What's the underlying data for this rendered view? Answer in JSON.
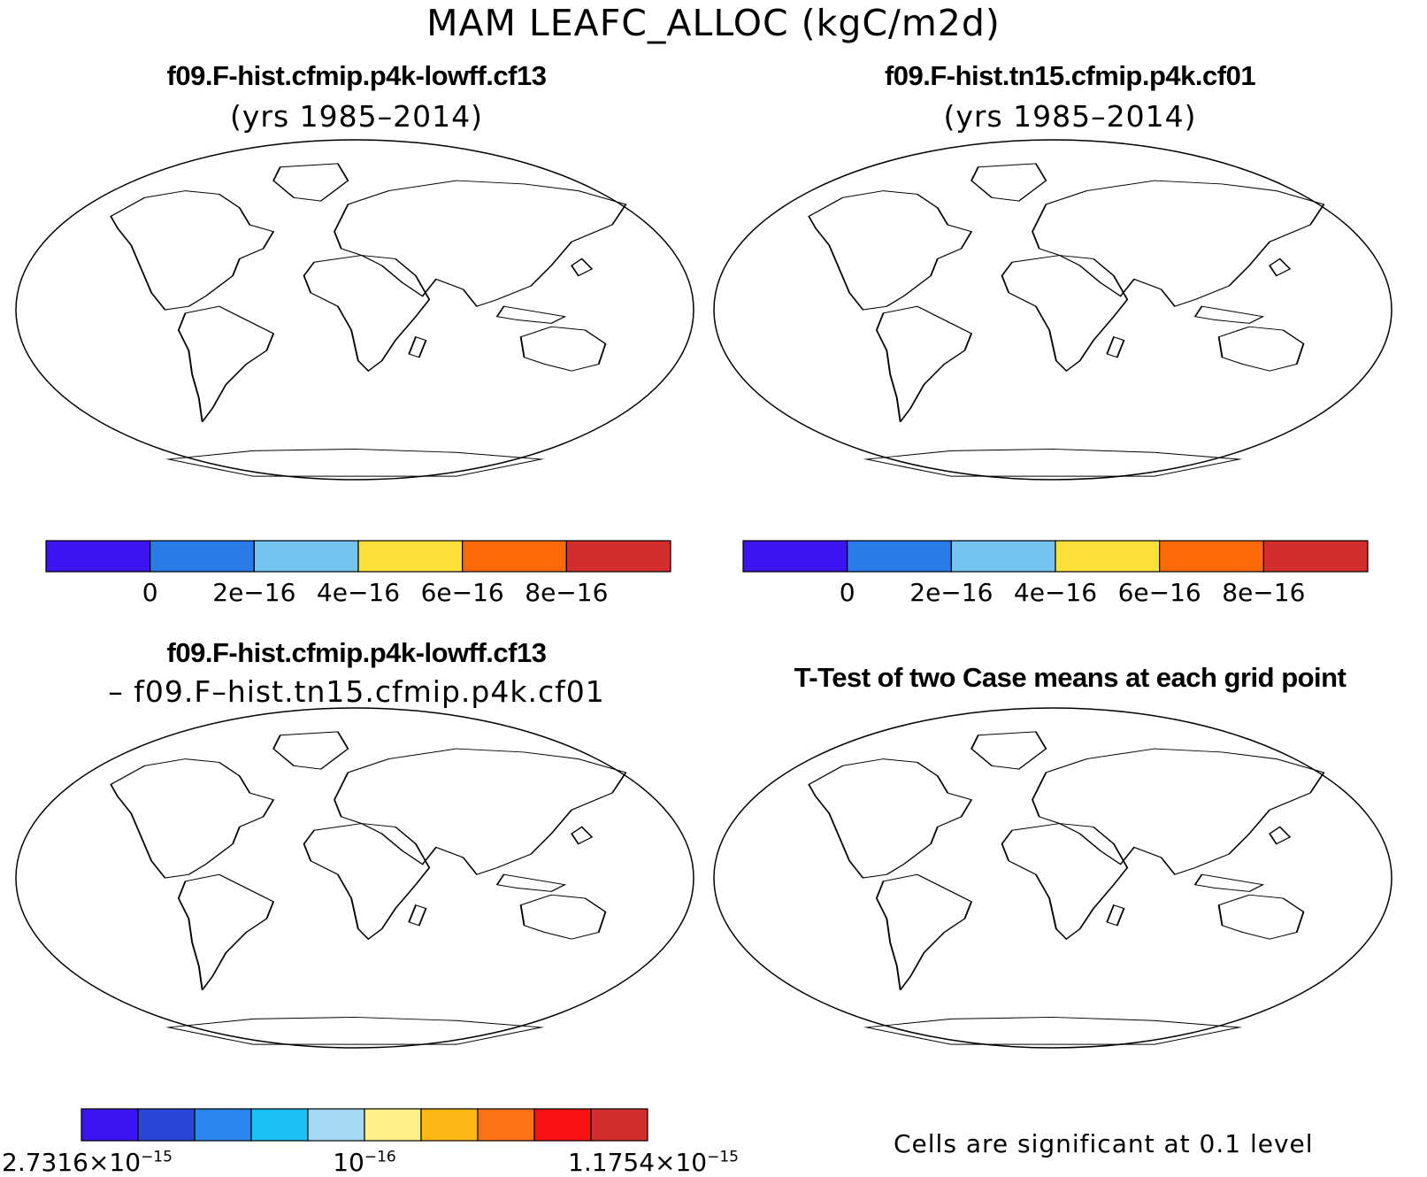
{
  "title": "MAM LEAFC_ALLOC (kgC/m2d)",
  "panels": {
    "case1": {
      "title": "f09.F-hist.cfmip.p4k-lowff.cf13",
      "subtitle": "(yrs 1985–2014)"
    },
    "case2": {
      "title": "f09.F-hist.tn15.cfmip.p4k.cf01",
      "subtitle": "(yrs 1985–2014)"
    },
    "diff": {
      "title": "f09.F-hist.cfmip.p4k-lowff.cf13",
      "subtitle": "– f09.F–hist.tn15.cfmip.p4k.cf01"
    },
    "ttest": {
      "title": "T-Test of two Case means at each grid point",
      "note": "Cells are significant at 0.1 level"
    }
  },
  "colorbars": {
    "case": {
      "colors": [
        "#3c14f0",
        "#2a7ae8",
        "#73c3ee",
        "#fde13a",
        "#ff6a08",
        "#d32e2e"
      ],
      "tick_labels": [
        "0",
        "2e−16",
        "4e−16",
        "6e−16",
        "8e−16"
      ]
    },
    "diff": {
      "colors": [
        "#3c14f0",
        "#2a45d8",
        "#2a85ee",
        "#1cc0f5",
        "#a6d8f2",
        "#fef08a",
        "#feb818",
        "#ff7218",
        "#f81214",
        "#d32e2e"
      ],
      "low_mantissa": "2.7316×10",
      "low_exp": "−15",
      "mid_mantissa": "10",
      "mid_exp": "−16",
      "high_mantissa": "1.1754×10",
      "high_exp": "−15"
    }
  },
  "map_colors": {
    "land_low": "#2a7ae8",
    "land_mid": "#73c3ee",
    "land_yellow": "#fde13a",
    "land_orange": "#ff6a08",
    "land_high": "#d32e2e",
    "diff_base": "#fef08a",
    "diff_neg_light": "#a6d8f2",
    "diff_neg_mid": "#2a85ee",
    "diff_neg_strong": "#3c14f0",
    "diff_pos": "#ff7218",
    "diff_pos_strong": "#c8302a",
    "significant": "#ff0000"
  }
}
